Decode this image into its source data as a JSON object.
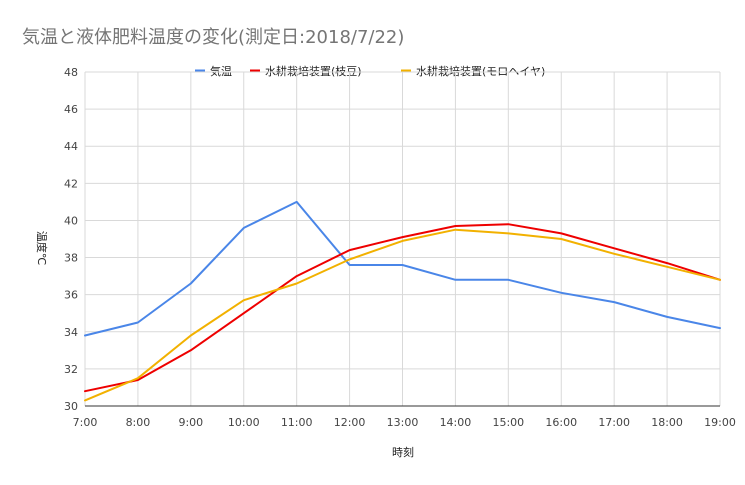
{
  "chart_data": {
    "type": "line",
    "title": "気温と液体肥料温度の変化(測定日:2018/7/22)",
    "xlabel": "時刻",
    "ylabel": "温度℃",
    "categories": [
      "7:00",
      "8:00",
      "9:00",
      "10:00",
      "11:00",
      "12:00",
      "13:00",
      "14:00",
      "15:00",
      "16:00",
      "17:00",
      "18:00",
      "19:00"
    ],
    "ylim": [
      30,
      48
    ],
    "yticks": [
      "30",
      "32",
      "34",
      "36",
      "38",
      "40",
      "42",
      "44",
      "46",
      "48"
    ],
    "grid": true,
    "legend_position": "top",
    "series": [
      {
        "name": "気温",
        "color": "#4a86e8",
        "values": [
          33.8,
          34.5,
          36.6,
          39.6,
          41.0,
          37.6,
          37.6,
          36.8,
          36.8,
          36.1,
          35.6,
          34.8,
          34.2
        ]
      },
      {
        "name": "水耕栽培装置(枝豆)",
        "color": "#ee0000",
        "values": [
          30.8,
          31.4,
          33.0,
          35.0,
          37.0,
          38.4,
          39.1,
          39.7,
          39.8,
          39.3,
          38.5,
          37.7,
          36.8
        ]
      },
      {
        "name": "水耕栽培装置(モロヘイヤ)",
        "color": "#f2b100",
        "values": [
          30.3,
          31.5,
          33.8,
          35.7,
          36.6,
          37.9,
          38.9,
          39.5,
          39.3,
          39.0,
          38.2,
          37.5,
          36.8
        ]
      }
    ]
  }
}
